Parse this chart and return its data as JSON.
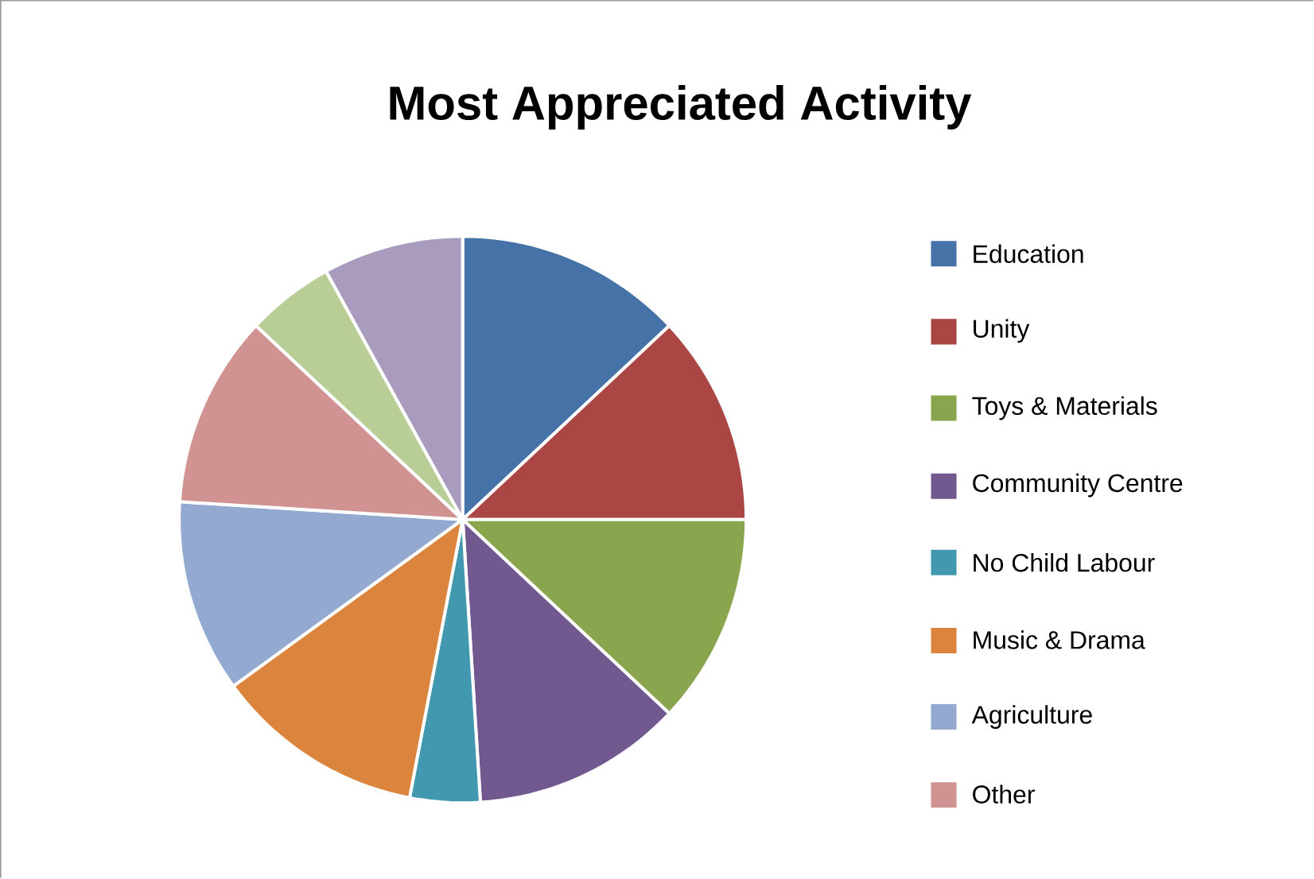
{
  "chart_data": {
    "type": "pie",
    "title": "Most Appreciated Activity",
    "categories": [
      "Education",
      "Unity",
      "Toys & Materials",
      "Community Centre",
      "No Child Labour",
      "Music & Drama",
      "Agriculture",
      "Other",
      null,
      null
    ],
    "values": [
      13,
      12,
      12,
      12,
      4,
      12,
      11,
      11,
      5,
      8
    ],
    "colors": [
      "#4572a7",
      "#aa4643",
      "#89a54e",
      "#71588f",
      "#4198af",
      "#db843d",
      "#93a9cf",
      "#d19392",
      "#b9cd96",
      "#a99bbd"
    ],
    "legend": "right"
  }
}
